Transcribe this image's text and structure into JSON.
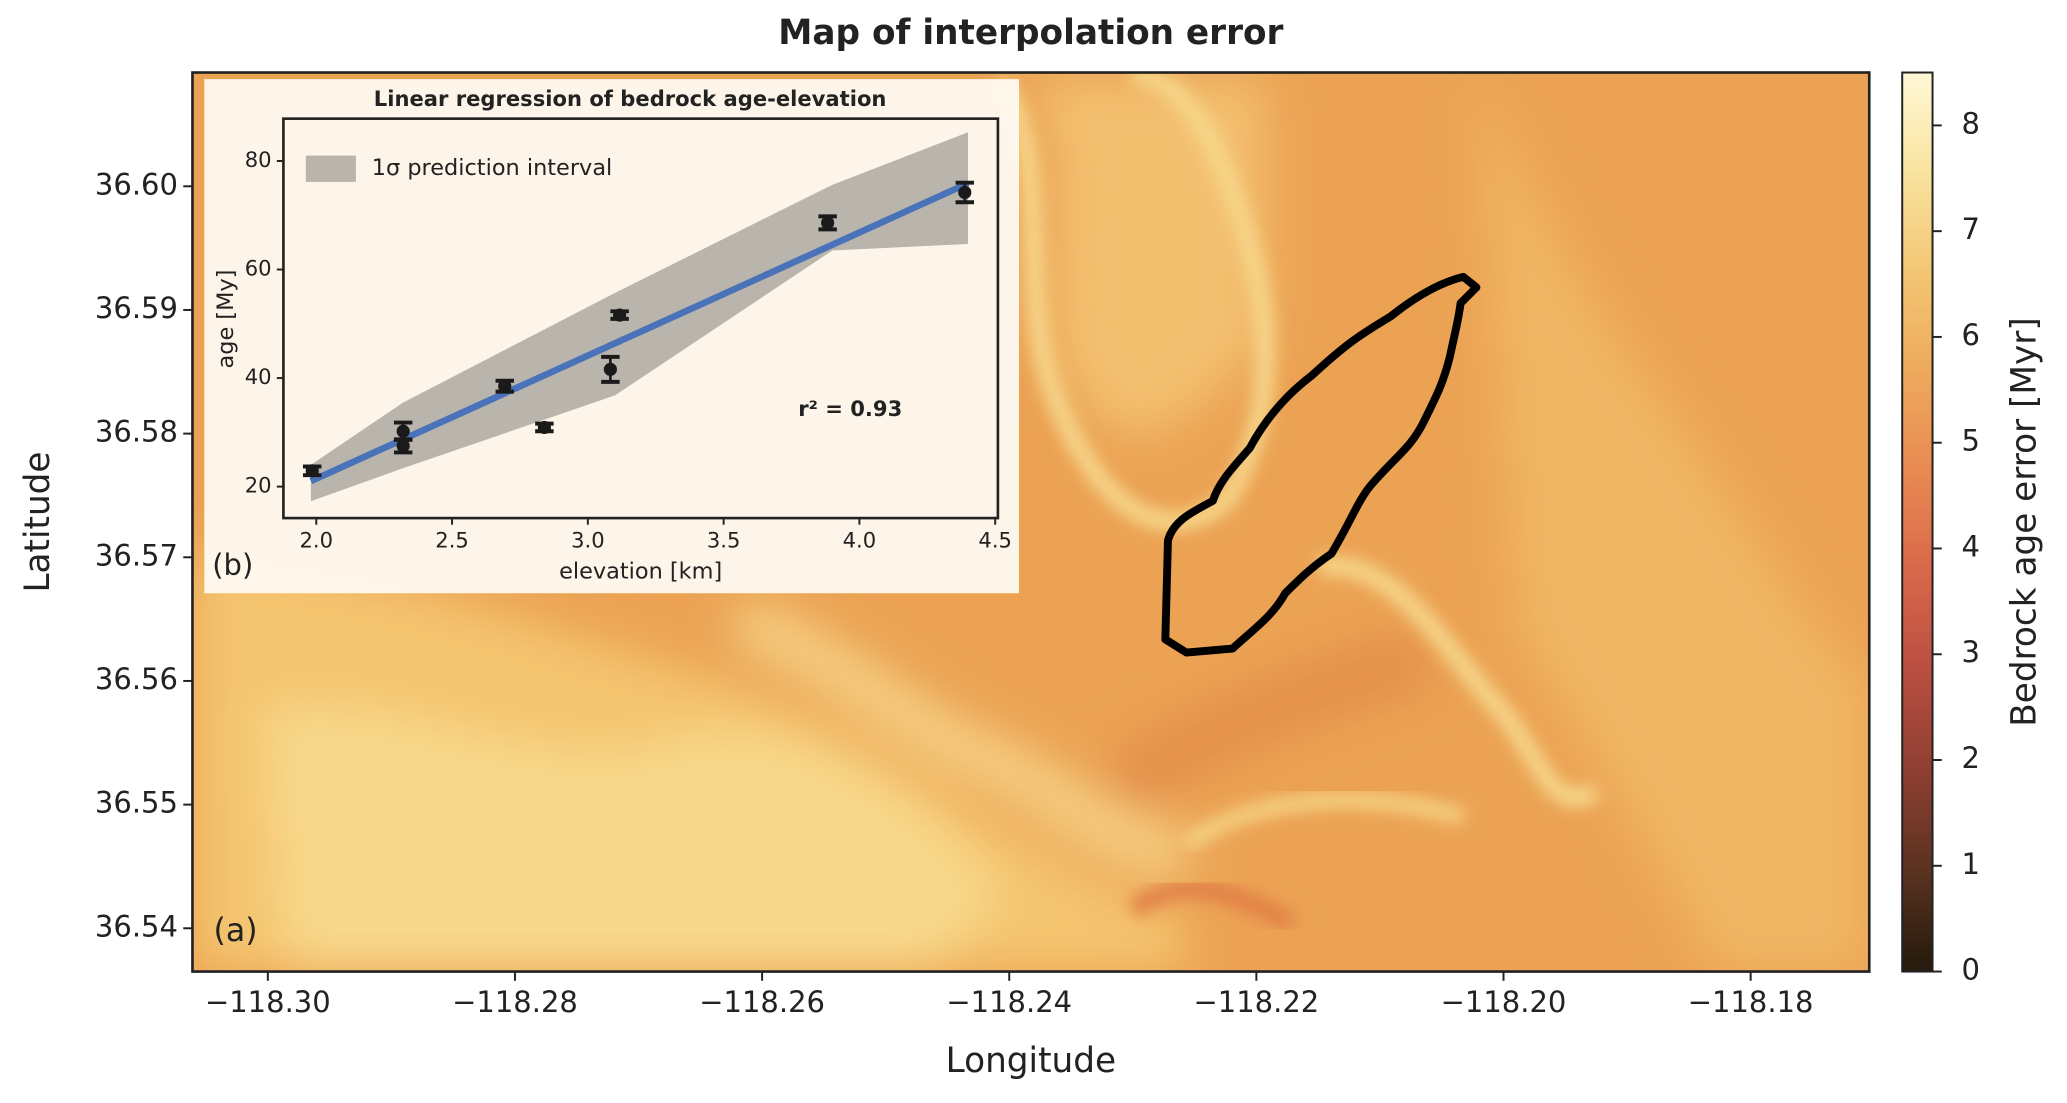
{
  "chart_data": [
    {
      "type": "heatmap",
      "title": "Map of interpolation error",
      "xlabel": "Longitude",
      "ylabel": "Latitude",
      "panel_label": "(a)",
      "xlim": [
        -118.3061,
        -118.1704
      ],
      "xticks": [
        {
          "value": -118.3,
          "label": "−118.30"
        },
        {
          "value": -118.28,
          "label": "−118.28"
        },
        {
          "value": -118.26,
          "label": "−118.26"
        },
        {
          "value": -118.24,
          "label": "−118.24"
        },
        {
          "value": -118.22,
          "label": "−118.22"
        },
        {
          "value": -118.2,
          "label": "−118.20"
        },
        {
          "value": -118.18,
          "label": "−118.18"
        }
      ],
      "ylim": [
        36.5365,
        36.6092
      ],
      "yticks": [
        {
          "value": 36.54,
          "label": "36.54"
        },
        {
          "value": 36.55,
          "label": "36.55"
        },
        {
          "value": 36.56,
          "label": "36.56"
        },
        {
          "value": 36.57,
          "label": "36.57"
        },
        {
          "value": 36.58,
          "label": "36.58"
        },
        {
          "value": 36.59,
          "label": "36.59"
        },
        {
          "value": 36.6,
          "label": "36.60"
        }
      ],
      "colorbar": {
        "label": "Bedrock age error [Myr]",
        "lim": [
          0,
          8.5
        ],
        "ticks": [
          0,
          1,
          2,
          3,
          4,
          5,
          6,
          7,
          8
        ],
        "colors": [
          "#241a0c",
          "#5a3220",
          "#8e3f32",
          "#b94e42",
          "#d8674a",
          "#e88a52",
          "#eea95e",
          "#f3c674",
          "#f9e39f",
          "#fff8d6"
        ]
      }
    },
    {
      "type": "scatter",
      "title": "Linear regression of bedrock age-elevation",
      "xlabel": "elevation [km]",
      "ylabel": "age [My]",
      "panel_label": "(b)",
      "annotation": "r² = 0.93",
      "xlim": [
        1.879,
        4.51
      ],
      "xticks": [
        {
          "value": 2.0,
          "label": "2.0"
        },
        {
          "value": 2.5,
          "label": "2.5"
        },
        {
          "value": 3.0,
          "label": "3.0"
        },
        {
          "value": 3.5,
          "label": "3.5"
        },
        {
          "value": 4.0,
          "label": "4.0"
        },
        {
          "value": 4.5,
          "label": "4.5"
        }
      ],
      "ylim": [
        14.2,
        87.8
      ],
      "yticks": [
        20,
        40,
        60,
        80
      ],
      "points": {
        "color": "#1a1a1a",
        "x": [
          1.985,
          2.32,
          2.32,
          2.694,
          2.84,
          3.083,
          3.117,
          3.883,
          4.388
        ],
        "values": [
          22.9,
          30.2,
          27.5,
          38.5,
          30.9,
          41.6,
          51.6,
          68.6,
          74.2
        ],
        "errors": [
          0.8,
          1.6,
          1.2,
          1.0,
          0.7,
          2.3,
          0.7,
          1.2,
          1.8
        ]
      },
      "fit": {
        "color": "#4a72b8",
        "x": [
          1.98,
          4.4
        ],
        "values": [
          21,
          75.9
        ]
      },
      "band": {
        "name": "1σ prediction interval",
        "color": "#a8a59e",
        "x": [
          1.98,
          2.32,
          3.1,
          3.9,
          4.4
        ],
        "lower": [
          17.3,
          23.4,
          36.8,
          63.5,
          64.7
        ],
        "upper": [
          24,
          35.5,
          55.7,
          75.6,
          85.3
        ]
      }
    }
  ]
}
